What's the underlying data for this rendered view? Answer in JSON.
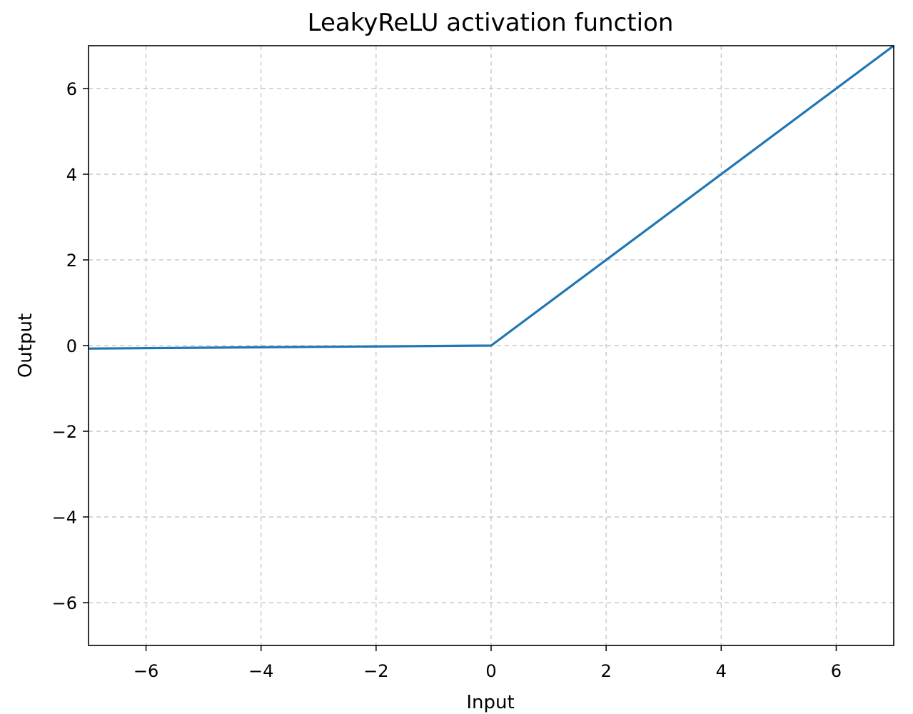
{
  "chart_data": {
    "type": "line",
    "title": "LeakyReLU activation function",
    "xlabel": "Input",
    "ylabel": "Output",
    "xlim": [
      -7,
      7
    ],
    "ylim": [
      -7,
      7
    ],
    "xticks": [
      -6,
      -4,
      -2,
      0,
      2,
      4,
      6
    ],
    "yticks": [
      -6,
      -4,
      -2,
      0,
      2,
      4,
      6
    ],
    "grid": true,
    "legend": "none",
    "series": [
      {
        "color": "#1f77b4",
        "x": [
          -7,
          0,
          7
        ],
        "y": [
          -0.07,
          0,
          7
        ]
      }
    ]
  }
}
